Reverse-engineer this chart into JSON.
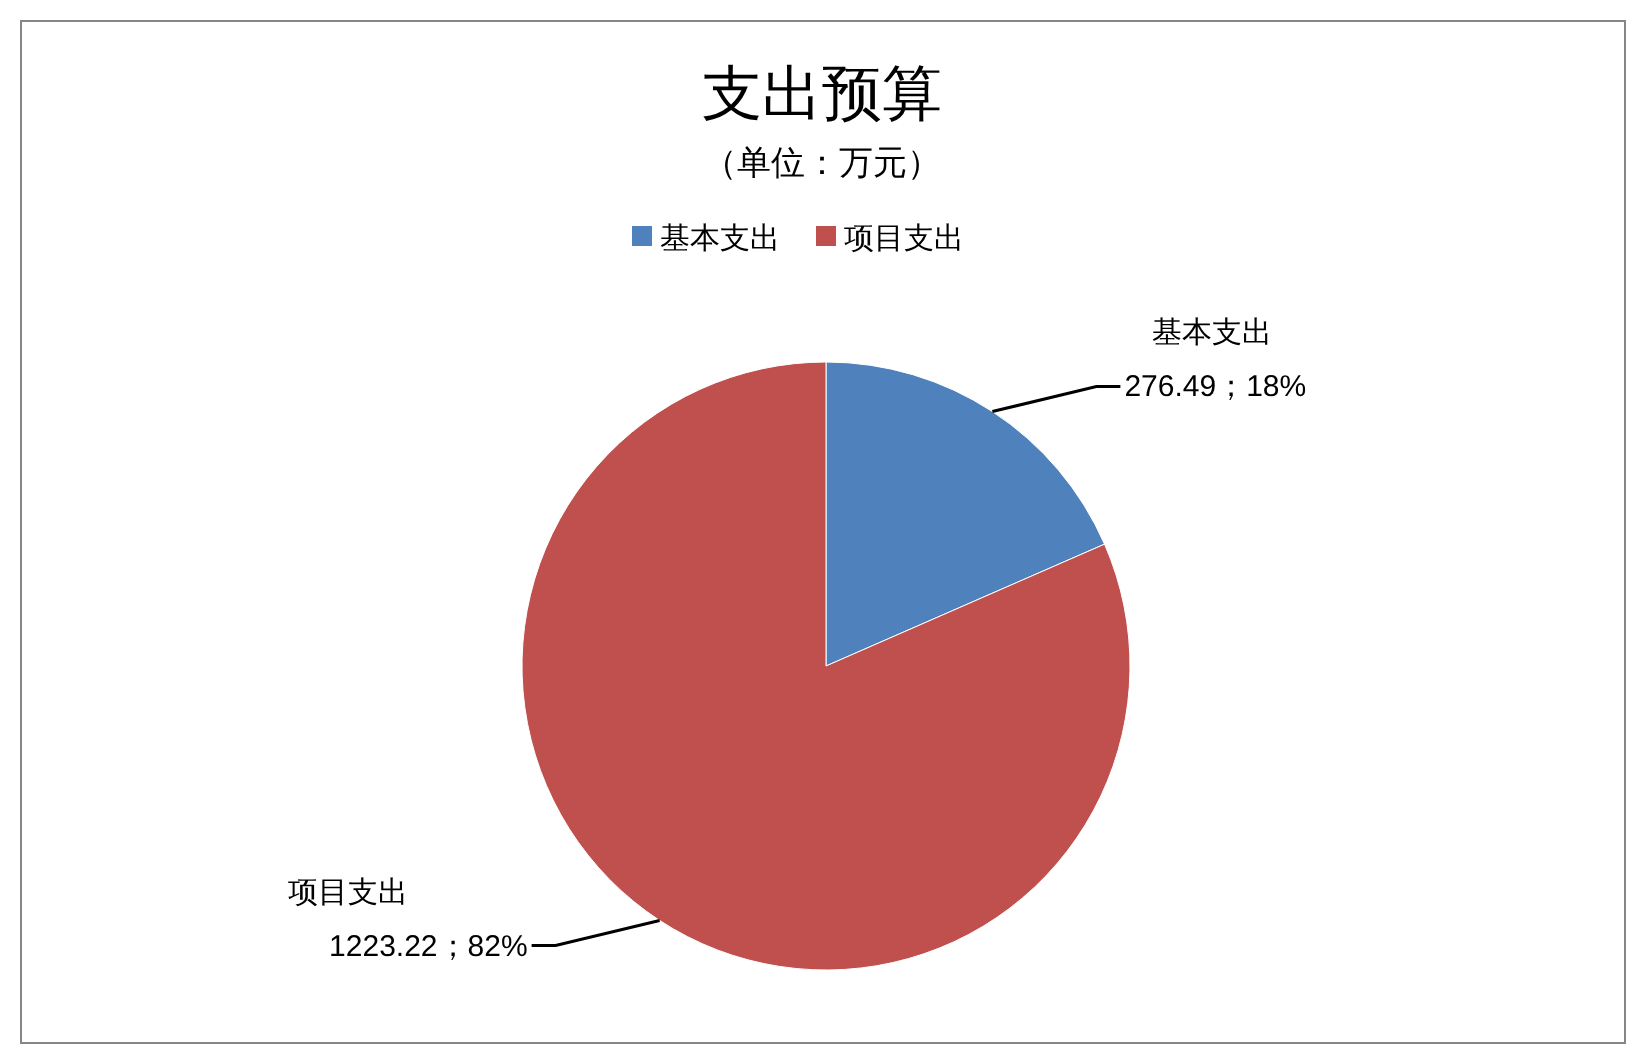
{
  "chart_data": {
    "type": "pie",
    "title": "支出预算",
    "subtitle": "（单位：万元）",
    "categories": [
      "基本支出",
      "项目支出"
    ],
    "values": [
      276.49,
      1223.22
    ],
    "colors": [
      "#4f81bd",
      "#c0504d"
    ],
    "legend": "top",
    "value_labels": [
      "276.49；18%",
      "1223.22；82%"
    ]
  }
}
